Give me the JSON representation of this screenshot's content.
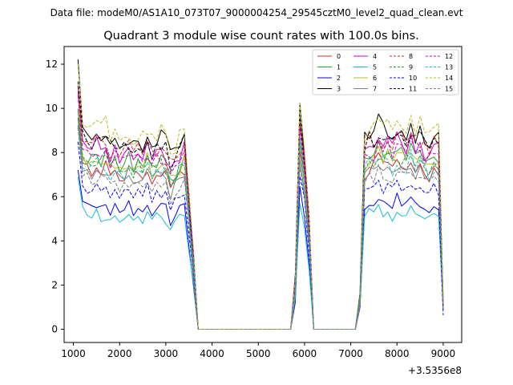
{
  "chart_data": {
    "type": "line",
    "suptitle": "Data file: modeM0/AS1A10_073T07_9000004254_29545cztM0_level2_quad_clean.evt",
    "title": "Quadrant 3 module wise count rates with 100.0s bins.",
    "xlabel": "",
    "ylabel": "",
    "x_offset_label": "+3.5356e8",
    "xlim": [
      800,
      9400
    ],
    "ylim": [
      -0.6,
      12.8
    ],
    "xticks": [
      1000,
      2000,
      3000,
      4000,
      5000,
      6000,
      7000,
      8000,
      9000
    ],
    "yticks": [
      0,
      2,
      4,
      6,
      8,
      10,
      12
    ],
    "legend_position": "top-right",
    "x": [
      1100,
      1200,
      1300,
      1400,
      1500,
      1600,
      1700,
      1800,
      1900,
      2000,
      2100,
      2200,
      2300,
      2400,
      2500,
      2600,
      2700,
      2800,
      2900,
      3000,
      3100,
      3200,
      3300,
      3400,
      3500,
      3600,
      3700,
      3800,
      3900,
      4000,
      4100,
      4200,
      4300,
      4400,
      4500,
      4600,
      4700,
      4800,
      4900,
      5000,
      5100,
      5200,
      5300,
      5400,
      5500,
      5600,
      5700,
      5800,
      5900,
      6000,
      6100,
      6200,
      6300,
      6400,
      6500,
      6600,
      6700,
      6800,
      6900,
      7000,
      7100,
      7200,
      7300,
      7400,
      7500,
      7600,
      7700,
      7800,
      7900,
      8000,
      8100,
      8200,
      8300,
      8400,
      8500,
      8600,
      8700,
      8800,
      8900,
      9000
    ],
    "base": [
      8.5,
      7.4,
      7.2,
      7.0,
      7.3,
      7.1,
      7.2,
      6.9,
      7.1,
      6.8,
      6.9,
      7.1,
      6.8,
      7.0,
      6.9,
      7.2,
      6.7,
      7.0,
      7.1,
      6.9,
      6.3,
      6.5,
      6.9,
      7.2,
      5.0,
      2.5,
      0,
      0,
      0,
      0,
      0,
      0,
      0,
      0,
      0,
      0,
      0,
      0,
      0,
      0,
      0,
      0,
      0,
      0,
      0,
      0,
      0,
      1.8,
      8.0,
      6.5,
      4.0,
      0,
      0,
      0,
      0,
      0,
      0,
      0,
      0,
      0,
      0,
      1.2,
      7.0,
      7.3,
      7.2,
      7.6,
      7.3,
      7.4,
      7.1,
      7.5,
      7.3,
      7.2,
      7.6,
      7.1,
      7.3,
      7.0,
      6.9,
      7.2,
      7.1,
      1.0
    ],
    "series": [
      {
        "name": "0",
        "color": "#d62728",
        "dashed": false,
        "level": 7.6
      },
      {
        "name": "1",
        "color": "#2ca02c",
        "dashed": false,
        "level": 8.1
      },
      {
        "name": "2",
        "color": "#0000ff",
        "dashed": false,
        "level": 5.9
      },
      {
        "name": "3",
        "color": "#000000",
        "dashed": false,
        "level": 9.2
      },
      {
        "name": "4",
        "color": "#cc00cc",
        "dashed": false,
        "level": 8.6
      },
      {
        "name": "5",
        "color": "#17becf",
        "dashed": false,
        "level": 5.4
      },
      {
        "name": "6",
        "color": "#bcbd22",
        "dashed": false,
        "level": 8.0
      },
      {
        "name": "7",
        "color": "#7f7f7f",
        "dashed": false,
        "level": 7.4
      },
      {
        "name": "8",
        "color": "#d62728",
        "dashed": true,
        "level": 8.8
      },
      {
        "name": "9",
        "color": "#2ca02c",
        "dashed": true,
        "level": 7.9
      },
      {
        "name": "10",
        "color": "#0000ff",
        "dashed": true,
        "level": 6.6
      },
      {
        "name": "11",
        "color": "#000000",
        "dashed": true,
        "level": 8.9
      },
      {
        "name": "12",
        "color": "#cc00cc",
        "dashed": true,
        "level": 8.3
      },
      {
        "name": "13",
        "color": "#17becf",
        "dashed": true,
        "level": 7.7
      },
      {
        "name": "14",
        "color": "#bcbd22",
        "dashed": true,
        "level": 9.6
      },
      {
        "name": "15",
        "color": "#7f7f7f",
        "dashed": true,
        "level": 7.1
      }
    ]
  }
}
